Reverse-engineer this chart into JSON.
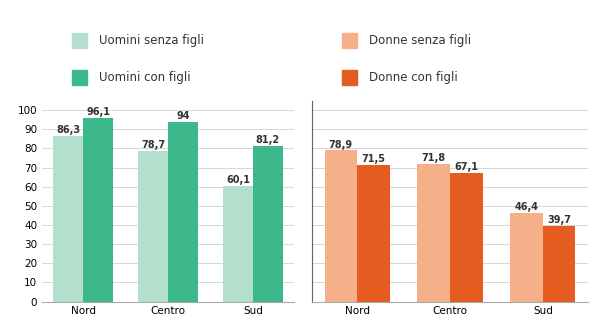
{
  "uomini_senza_figli": [
    86.3,
    78.7,
    60.1
  ],
  "uomini_con_figli": [
    96.1,
    94.0,
    81.2
  ],
  "uomini_con_figli_labels": [
    "96,1",
    "94",
    "81,2"
  ],
  "donne_senza_figli": [
    78.9,
    71.8,
    46.4
  ],
  "donne_con_figli": [
    71.5,
    67.1,
    39.7
  ],
  "categories": [
    "Nord",
    "Centro",
    "Sud"
  ],
  "color_uomini_senza": "#b2e0cc",
  "color_uomini_con": "#3cb88a",
  "color_donne_senza": "#f5b08a",
  "color_donne_con": "#e55c20",
  "ylim": [
    0,
    105
  ],
  "yticks": [
    0,
    10,
    20,
    30,
    40,
    50,
    60,
    70,
    80,
    90,
    100
  ],
  "legend_labels": [
    "Uomini senza figli",
    "Uomini con figli",
    "Donne senza figli",
    "Donne con figli"
  ],
  "bar_width": 0.35,
  "label_fontsize": 7.0,
  "tick_fontsize": 7.5,
  "legend_fontsize": 8.5
}
